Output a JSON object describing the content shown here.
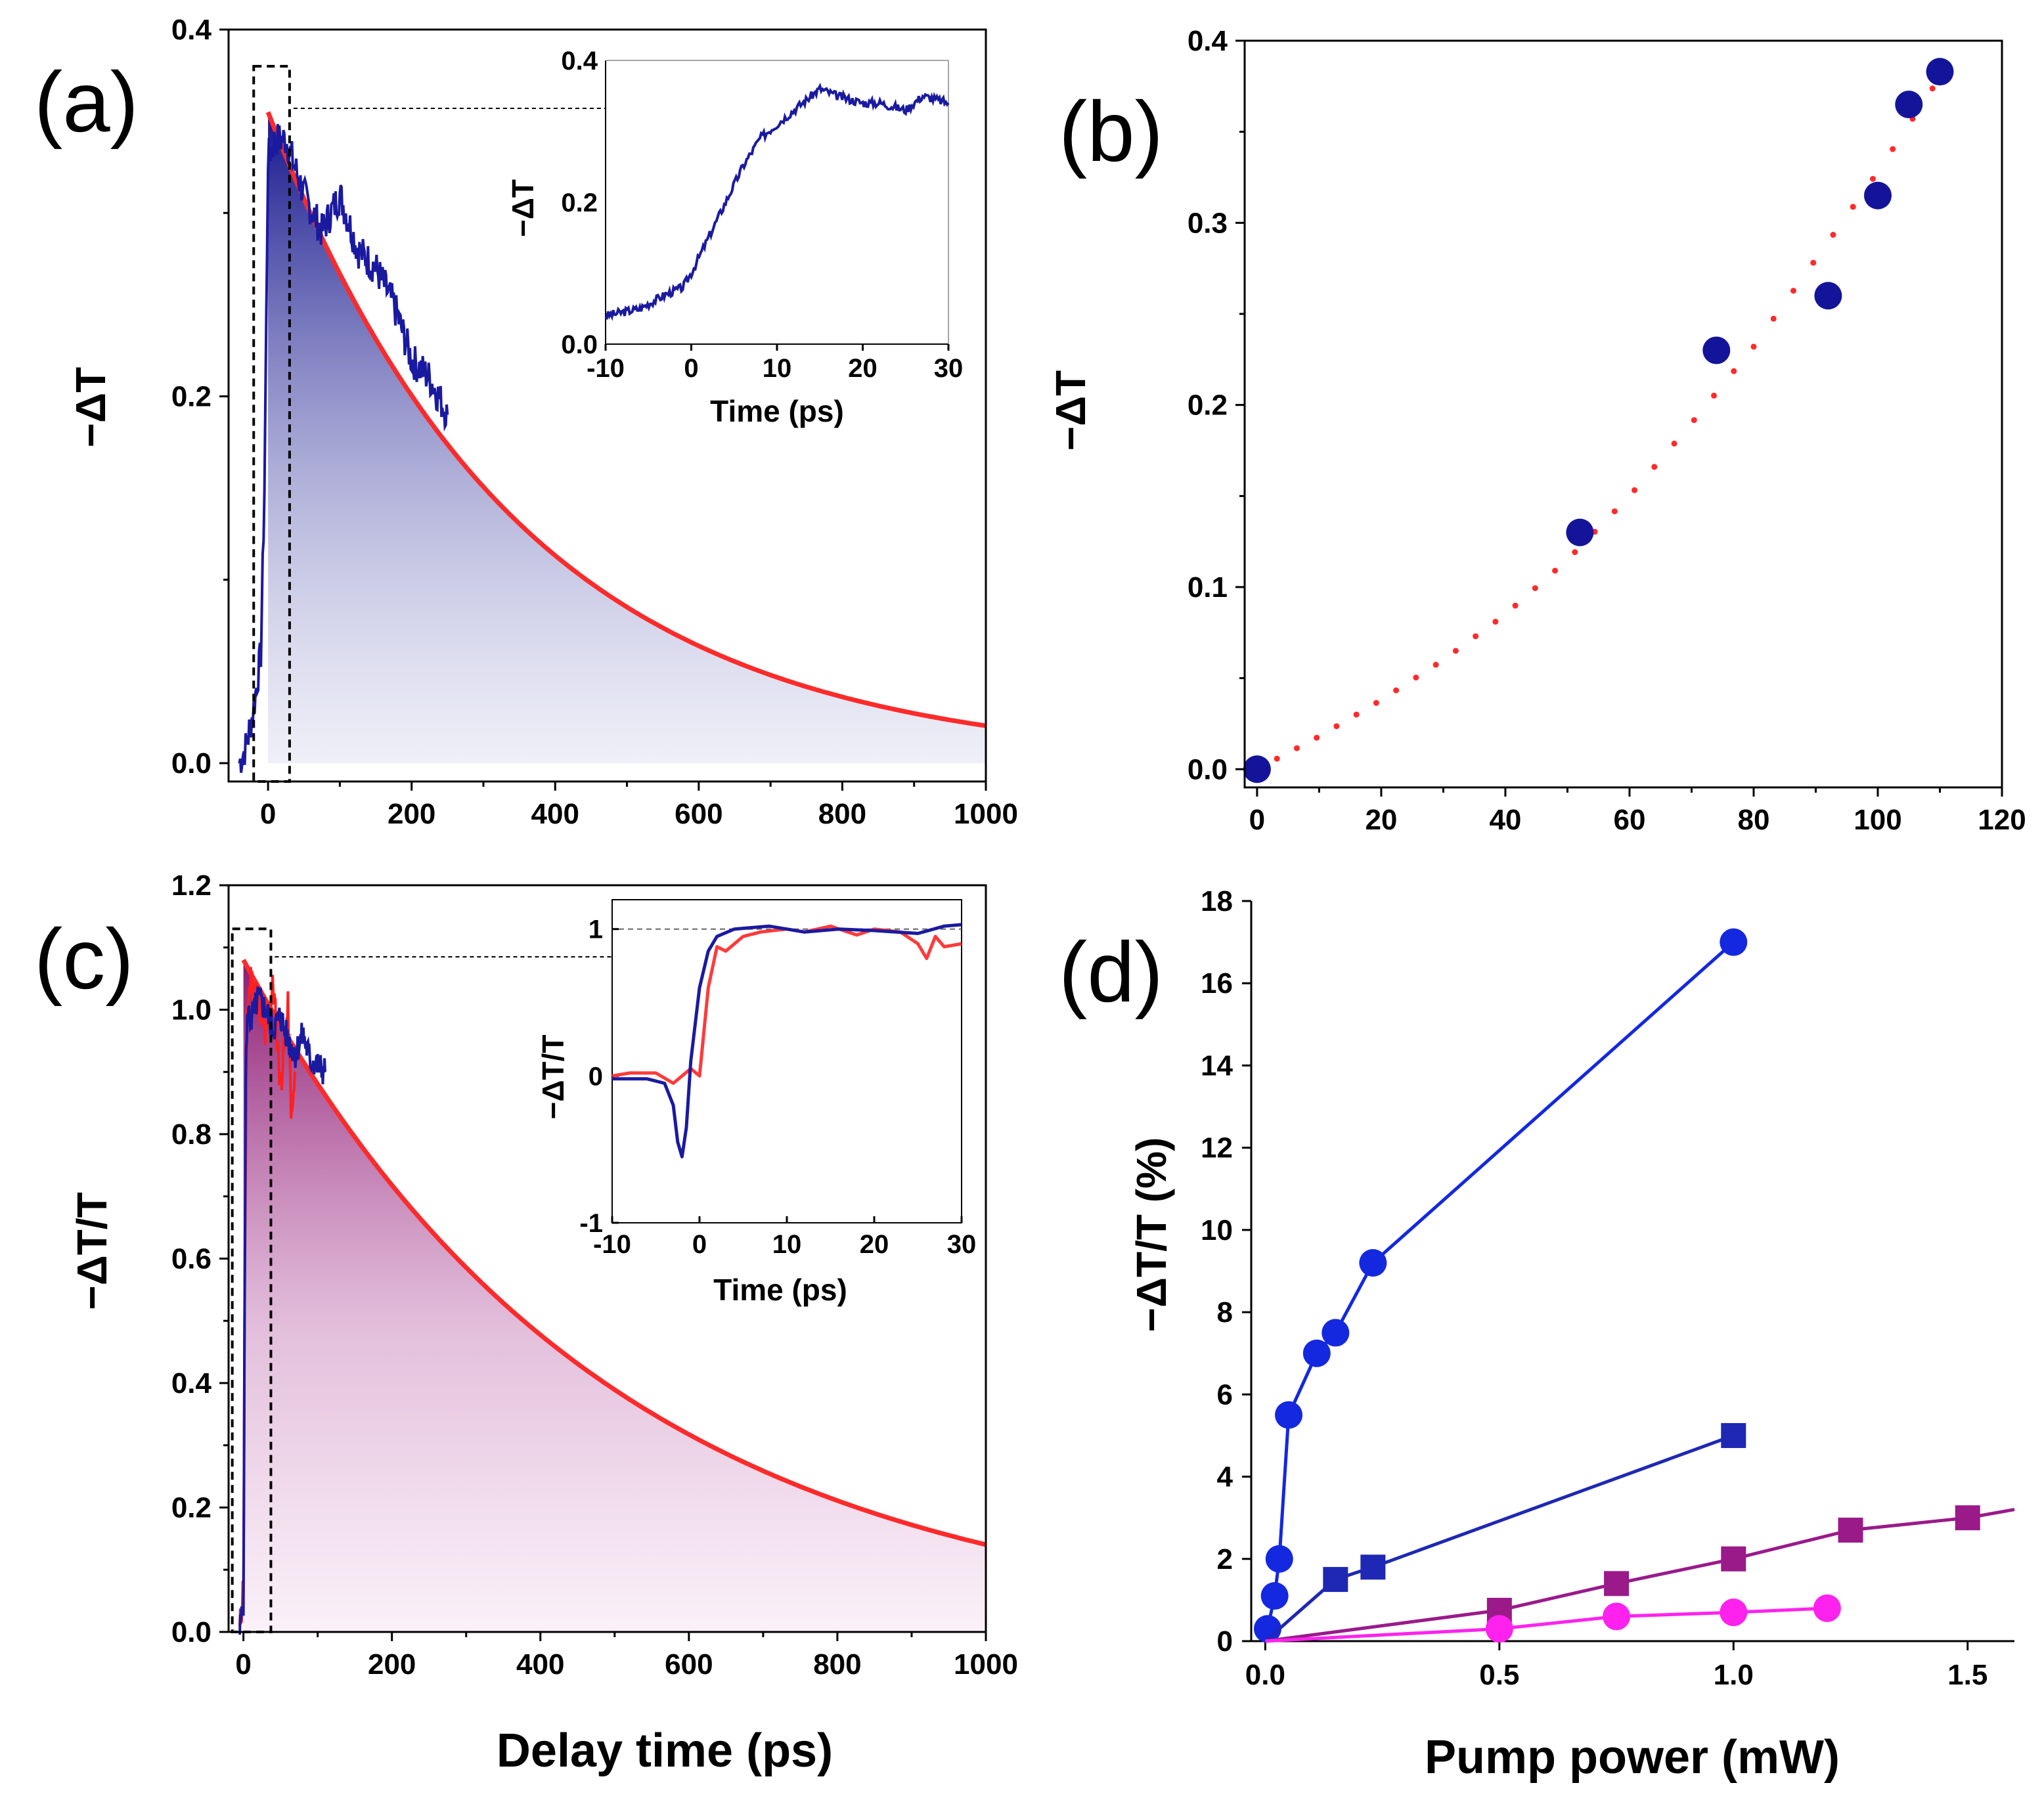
{
  "chart_data": [
    {
      "panel": "(a)",
      "type": "line",
      "xlabel": "",
      "ylabel": "−ΔT",
      "xlim": [
        -55,
        1000
      ],
      "ylim": [
        -0.01,
        0.4
      ],
      "xticks": [
        0,
        200,
        400,
        600,
        800,
        1000
      ],
      "yticks": [
        0.0,
        0.2,
        0.4
      ],
      "ytick_labels": [
        "0.0",
        "0.2",
        "0.4"
      ],
      "series": [
        {
          "name": "fit",
          "color": "#ff2a2a",
          "amplitude": 0.355,
          "tau_ps": 350,
          "x_start": 0,
          "x_end": 1000
        },
        {
          "name": "data",
          "color": "#1a1aa0",
          "x": [
            -40,
            -30,
            -20,
            -10,
            -5,
            0,
            10,
            25,
            50,
            75,
            100,
            125,
            150,
            175,
            200,
            225,
            250
          ],
          "y": [
            0.0,
            0.01,
            0.03,
            0.06,
            0.15,
            0.33,
            0.34,
            0.34,
            0.31,
            0.29,
            0.31,
            0.28,
            0.27,
            0.25,
            0.22,
            0.21,
            0.19
          ]
        }
      ],
      "inset": {
        "xlabel": "Time (ps)",
        "ylabel": "−ΔT",
        "xlim": [
          -10,
          30
        ],
        "ylim": [
          0,
          0.4
        ],
        "xticks": [
          -10,
          0,
          10,
          20,
          30
        ],
        "yticks": [
          0.0,
          0.2,
          0.4
        ],
        "ytick_labels": [
          "0.0",
          "0.2",
          "0.4"
        ],
        "x": [
          -10,
          -6,
          -3,
          -1,
          0,
          2,
          4,
          6,
          8,
          10,
          12,
          14,
          15,
          17,
          20,
          22,
          25,
          27,
          30
        ],
        "y": [
          0.04,
          0.05,
          0.07,
          0.08,
          0.1,
          0.15,
          0.2,
          0.25,
          0.29,
          0.31,
          0.33,
          0.35,
          0.36,
          0.35,
          0.34,
          0.34,
          0.33,
          0.35,
          0.34
        ]
      }
    },
    {
      "panel": "(b)",
      "type": "scatter",
      "xlabel": "",
      "ylabel": "−ΔT",
      "xlim": [
        -2,
        120
      ],
      "ylim": [
        -0.01,
        0.4
      ],
      "xticks": [
        0,
        20,
        40,
        60,
        80,
        100,
        120
      ],
      "yticks": [
        0.0,
        0.1,
        0.2,
        0.3,
        0.4
      ],
      "ytick_labels": [
        "0.0",
        "0.1",
        "0.2",
        "0.3",
        "0.4"
      ],
      "series": [
        {
          "name": "data",
          "color": "#14149a",
          "x": [
            0,
            52,
            74,
            92,
            100,
            105,
            110
          ],
          "y": [
            0.0,
            0.13,
            0.23,
            0.26,
            0.315,
            0.365,
            0.383
          ]
        },
        {
          "name": "fit",
          "color": "#ff2a2a",
          "style": "dotted",
          "x": [
            0,
            10,
            20,
            30,
            40,
            50,
            60,
            70,
            80,
            90,
            100,
            110
          ],
          "y": [
            0.0,
            0.018,
            0.038,
            0.06,
            0.085,
            0.115,
            0.15,
            0.19,
            0.232,
            0.28,
            0.328,
            0.38
          ]
        }
      ]
    },
    {
      "panel": "(c)",
      "type": "line",
      "xlabel": "Delay time (ps)",
      "ylabel": "−ΔT/T",
      "xlim": [
        -20,
        1000
      ],
      "ylim": [
        0,
        1.2
      ],
      "xticks": [
        0,
        200,
        400,
        600,
        800,
        1000
      ],
      "yticks": [
        0.0,
        0.2,
        0.4,
        0.6,
        0.8,
        1.0,
        1.2
      ],
      "ytick_labels": [
        "0.0",
        "0.2",
        "0.4",
        "0.6",
        "0.8",
        "1.0",
        "1.2"
      ],
      "series": [
        {
          "name": "fit",
          "color": "#ff2a2a",
          "amplitude": 1.08,
          "tau_ps": 490,
          "x_start": 0,
          "x_end": 1000
        },
        {
          "name": "data red",
          "color": "#ff2020",
          "x": [
            -5,
            0,
            2,
            5,
            10,
            20,
            30,
            40,
            50,
            60,
            65,
            70
          ],
          "y": [
            0.0,
            0.08,
            0.6,
            1.0,
            1.05,
            1.02,
            0.95,
            1.04,
            0.88,
            1.0,
            0.82,
            0.9
          ]
        },
        {
          "name": "data blue",
          "color": "#1a1aa0",
          "x": [
            -5,
            0,
            3,
            6,
            10,
            20,
            30,
            40,
            50,
            60,
            70,
            80,
            90,
            100,
            110
          ],
          "y": [
            0.0,
            0.05,
            0.9,
            1.0,
            0.98,
            1.02,
            1.0,
            0.97,
            0.99,
            0.95,
            0.93,
            0.96,
            0.92,
            0.91,
            0.9
          ]
        }
      ],
      "inset": {
        "xlabel": "Time (ps)",
        "ylabel": "−ΔT/T",
        "xlim": [
          -10,
          30
        ],
        "ylim": [
          -1,
          1.2
        ],
        "xticks": [
          -10,
          0,
          10,
          20,
          30
        ],
        "yticks": [
          -1,
          0,
          1
        ],
        "ytick_labels": [
          "-1",
          "0",
          "1"
        ],
        "red_x": [
          -10,
          -8,
          -5,
          -3,
          -1,
          0,
          1,
          2,
          3,
          5,
          7,
          10,
          12,
          15,
          18,
          20,
          23,
          25,
          26,
          27,
          28,
          30
        ],
        "red_y": [
          0.0,
          0.02,
          0.02,
          -0.05,
          0.05,
          0.0,
          0.6,
          0.88,
          0.85,
          0.95,
          0.98,
          1.0,
          0.98,
          1.02,
          0.96,
          1.0,
          0.98,
          0.9,
          0.8,
          0.95,
          0.88,
          0.9
        ],
        "blue_x": [
          -10,
          -6,
          -4,
          -3,
          -2.5,
          -2,
          -1.5,
          -1,
          0,
          1,
          2,
          4,
          8,
          12,
          16,
          20,
          25,
          28,
          30
        ],
        "blue_y": [
          -0.02,
          -0.02,
          -0.05,
          -0.2,
          -0.45,
          -0.55,
          -0.35,
          0.1,
          0.6,
          0.85,
          0.95,
          1.0,
          1.02,
          0.98,
          1.0,
          0.99,
          0.97,
          1.02,
          1.03
        ]
      }
    },
    {
      "panel": "(d)",
      "type": "line",
      "xlabel": "Pump power (mW)",
      "ylabel": "−ΔT/T (%)",
      "xlim": [
        -0.03,
        1.6
      ],
      "ylim": [
        0,
        18
      ],
      "xticks": [
        0.0,
        0.5,
        1.0,
        1.5
      ],
      "xtick_labels": [
        "0.0",
        "0.5",
        "1.0",
        "1.5"
      ],
      "yticks": [
        0,
        2,
        4,
        6,
        8,
        10,
        12,
        14,
        16,
        18
      ],
      "series": [
        {
          "name": "blue circles",
          "color": "#1428e0",
          "marker": "circle",
          "x": [
            0.005,
            0.02,
            0.03,
            0.05,
            0.11,
            0.15,
            0.23,
            1.0
          ],
          "y": [
            0.3,
            1.1,
            2.0,
            5.5,
            7.0,
            7.5,
            9.2,
            17.0
          ]
        },
        {
          "name": "navy squares",
          "color": "#1e28b4",
          "marker": "square",
          "x": [
            0.0,
            0.15,
            0.23,
            1.0
          ],
          "y": [
            0.0,
            1.5,
            1.8,
            5.0
          ]
        },
        {
          "name": "purple squares",
          "color": "#9a1a8a",
          "marker": "square",
          "x": [
            0.0,
            0.5,
            0.75,
            1.0,
            1.25,
            1.5,
            1.6
          ],
          "y": [
            0.0,
            0.75,
            1.4,
            2.0,
            2.7,
            3.0,
            3.2
          ]
        },
        {
          "name": "magenta circles",
          "color": "#ff22ee",
          "marker": "circle",
          "x": [
            0.0,
            0.5,
            0.75,
            1.0,
            1.2
          ],
          "y": [
            0.0,
            0.3,
            0.6,
            0.7,
            0.8
          ]
        }
      ]
    }
  ]
}
